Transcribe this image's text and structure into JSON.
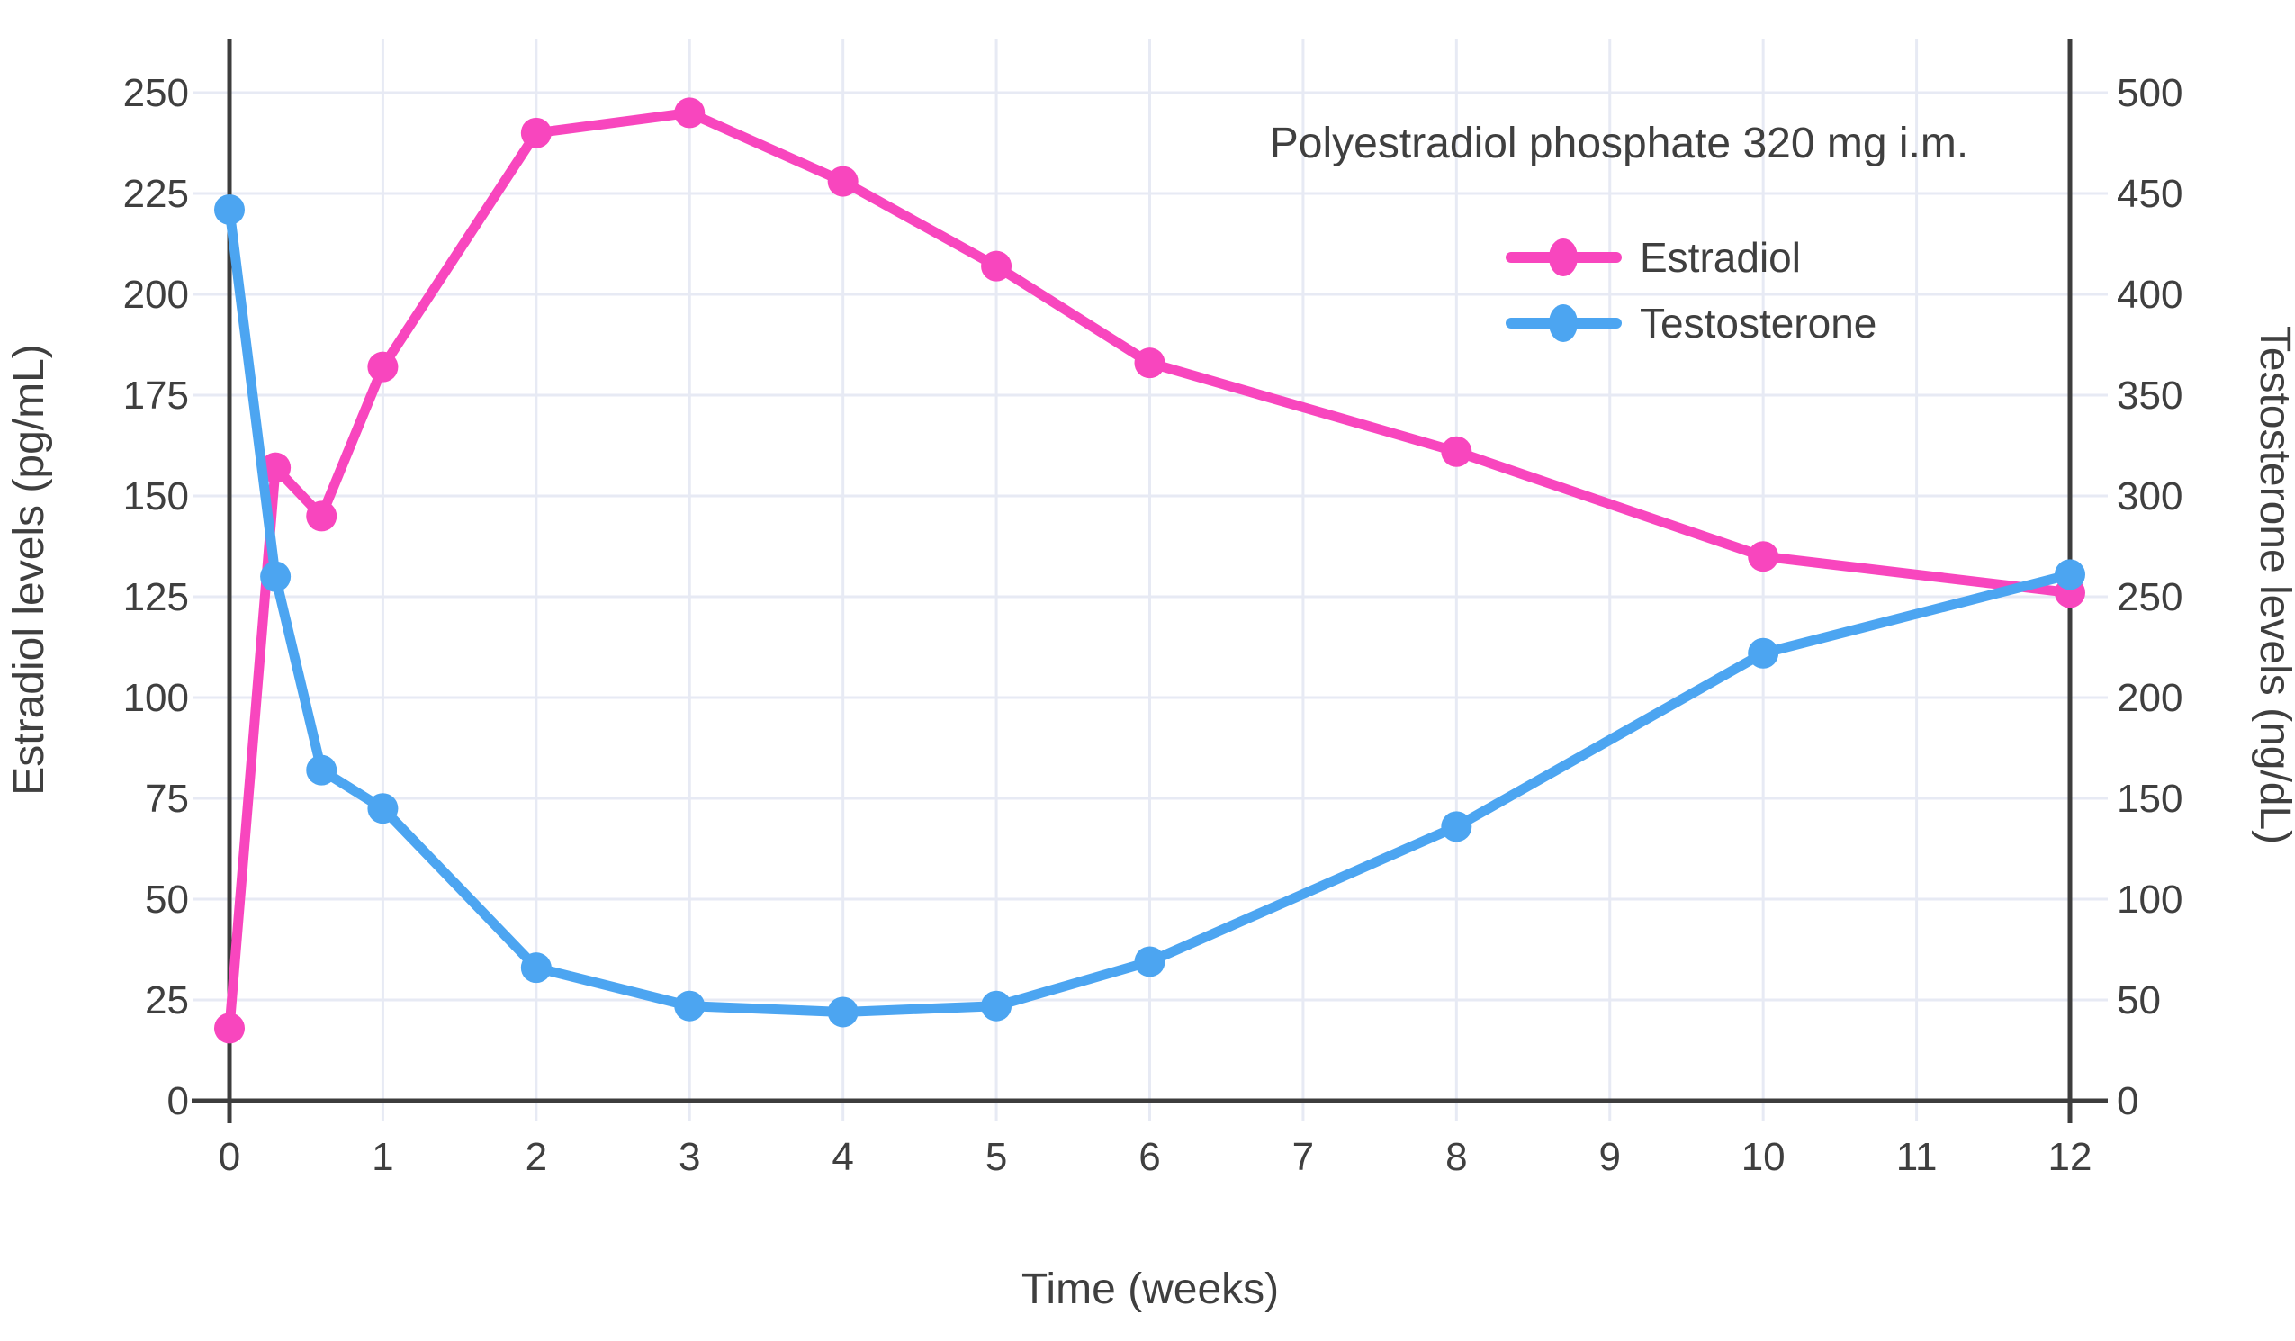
{
  "chart_data": {
    "type": "line",
    "title": "Polyestradiol phosphate 320 mg i.m.",
    "xlabel": "Time (weeks)",
    "ylabel_left": "Estradiol levels (pg/mL)",
    "ylabel_right": "Testosterone levels (ng/dL)",
    "x": [
      0,
      0.3,
      0.6,
      1,
      2,
      3,
      4,
      5,
      6,
      8,
      10,
      12
    ],
    "series": [
      {
        "name": "Estradiol",
        "axis": "left",
        "unit": "pg/mL",
        "color": "#f846be",
        "values": [
          18,
          157,
          145,
          182,
          240,
          245,
          228,
          207,
          183,
          161,
          135,
          126
        ]
      },
      {
        "name": "Testosterone",
        "axis": "right",
        "unit": "ng/dL",
        "color": "#4ca5f1",
        "values": [
          442,
          260,
          164,
          145,
          66,
          47,
          44,
          47,
          69,
          136,
          222,
          261
        ]
      }
    ],
    "x_ticks": [
      0,
      1,
      2,
      3,
      4,
      5,
      6,
      7,
      8,
      9,
      10,
      11,
      12
    ],
    "left_ticks": [
      0,
      25,
      50,
      75,
      100,
      125,
      150,
      175,
      200,
      225,
      250
    ],
    "right_ticks": [
      0,
      50,
      100,
      150,
      200,
      250,
      300,
      350,
      400,
      450,
      500
    ],
    "x_range": [
      0,
      12
    ],
    "left_range": [
      0,
      263.4
    ],
    "right_range": [
      0,
      526.8
    ],
    "grid": true,
    "legend_position": "top-right",
    "colors": {
      "estradiol": "#f846be",
      "testosterone": "#4ca5f1",
      "grid": "#e7eaf4",
      "axis": "#3d3d3d",
      "text": "#3f3f3f",
      "background": "#ffffff"
    }
  }
}
